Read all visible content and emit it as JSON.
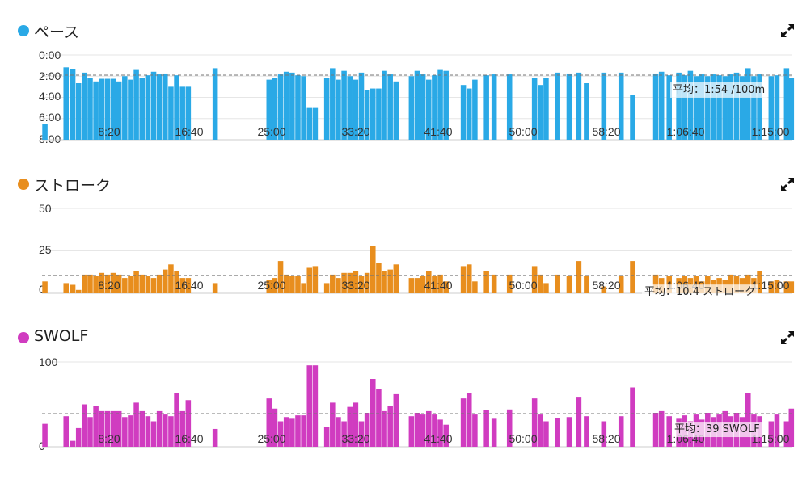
{
  "chart_data": [
    {
      "type": "bar",
      "title": "ペース",
      "color": "#2aa9e6",
      "y_ticks": [
        "0:00",
        "2:00",
        "4:00",
        "6:00",
        "8:00"
      ],
      "y_reversed": true,
      "ylim_seconds": [
        0,
        480
      ],
      "x_ticks": [
        "8:20",
        "16:40",
        "25:00",
        "33:20",
        "41:40",
        "50:00",
        "58:20",
        "1:06:40",
        "1:15:00"
      ],
      "xlim": [
        0,
        78
      ],
      "average_label": "平均：1:54 /100m",
      "average_value": 114,
      "grid": true,
      "values": [
        {
          "x": 0.3,
          "y": 390
        },
        {
          "x": 2.5,
          "y": 70
        },
        {
          "x": 3.2,
          "y": 80
        },
        {
          "x": 3.8,
          "y": 160
        },
        {
          "x": 4.4,
          "y": 100
        },
        {
          "x": 5.0,
          "y": 130
        },
        {
          "x": 5.6,
          "y": 150
        },
        {
          "x": 6.2,
          "y": 135
        },
        {
          "x": 6.8,
          "y": 135
        },
        {
          "x": 7.4,
          "y": 135
        },
        {
          "x": 8.0,
          "y": 150
        },
        {
          "x": 8.6,
          "y": 120
        },
        {
          "x": 9.2,
          "y": 140
        },
        {
          "x": 9.8,
          "y": 85
        },
        {
          "x": 10.4,
          "y": 130
        },
        {
          "x": 11.0,
          "y": 115
        },
        {
          "x": 11.6,
          "y": 95
        },
        {
          "x": 12.2,
          "y": 110
        },
        {
          "x": 12.8,
          "y": 105
        },
        {
          "x": 13.4,
          "y": 180
        },
        {
          "x": 14.0,
          "y": 115
        },
        {
          "x": 14.6,
          "y": 180
        },
        {
          "x": 15.2,
          "y": 180
        },
        {
          "x": 18.0,
          "y": 75
        },
        {
          "x": 23.6,
          "y": 140
        },
        {
          "x": 24.2,
          "y": 130
        },
        {
          "x": 24.8,
          "y": 110
        },
        {
          "x": 25.4,
          "y": 95
        },
        {
          "x": 26.0,
          "y": 100
        },
        {
          "x": 26.6,
          "y": 115
        },
        {
          "x": 27.2,
          "y": 120
        },
        {
          "x": 27.8,
          "y": 300
        },
        {
          "x": 28.4,
          "y": 300
        },
        {
          "x": 29.6,
          "y": 130
        },
        {
          "x": 30.2,
          "y": 75
        },
        {
          "x": 30.8,
          "y": 140
        },
        {
          "x": 31.4,
          "y": 90
        },
        {
          "x": 32.0,
          "y": 120
        },
        {
          "x": 32.6,
          "y": 140
        },
        {
          "x": 33.2,
          "y": 100
        },
        {
          "x": 33.8,
          "y": 200
        },
        {
          "x": 34.4,
          "y": 190
        },
        {
          "x": 35.0,
          "y": 190
        },
        {
          "x": 35.6,
          "y": 90
        },
        {
          "x": 36.2,
          "y": 110
        },
        {
          "x": 36.8,
          "y": 150
        },
        {
          "x": 38.4,
          "y": 120
        },
        {
          "x": 39.0,
          "y": 90
        },
        {
          "x": 39.6,
          "y": 110
        },
        {
          "x": 40.2,
          "y": 140
        },
        {
          "x": 40.8,
          "y": 115
        },
        {
          "x": 41.4,
          "y": 85
        },
        {
          "x": 42.0,
          "y": 90
        },
        {
          "x": 43.8,
          "y": 170
        },
        {
          "x": 44.4,
          "y": 190
        },
        {
          "x": 45.0,
          "y": 140
        },
        {
          "x": 46.2,
          "y": 115
        },
        {
          "x": 47.0,
          "y": 110
        },
        {
          "x": 48.6,
          "y": 110
        },
        {
          "x": 51.2,
          "y": 130
        },
        {
          "x": 51.8,
          "y": 170
        },
        {
          "x": 52.4,
          "y": 130
        },
        {
          "x": 53.6,
          "y": 100
        },
        {
          "x": 54.8,
          "y": 105
        },
        {
          "x": 55.8,
          "y": 100
        },
        {
          "x": 56.6,
          "y": 160
        },
        {
          "x": 58.4,
          "y": 100
        },
        {
          "x": 60.2,
          "y": 100
        },
        {
          "x": 61.4,
          "y": 225
        },
        {
          "x": 63.8,
          "y": 105
        },
        {
          "x": 64.4,
          "y": 95
        },
        {
          "x": 65.2,
          "y": 115
        },
        {
          "x": 66.2,
          "y": 100
        },
        {
          "x": 66.8,
          "y": 115
        },
        {
          "x": 67.4,
          "y": 90
        },
        {
          "x": 68.0,
          "y": 120
        },
        {
          "x": 68.6,
          "y": 110
        },
        {
          "x": 69.2,
          "y": 120
        },
        {
          "x": 69.8,
          "y": 110
        },
        {
          "x": 70.4,
          "y": 115
        },
        {
          "x": 71.0,
          "y": 120
        },
        {
          "x": 71.6,
          "y": 110
        },
        {
          "x": 72.2,
          "y": 100
        },
        {
          "x": 72.8,
          "y": 120
        },
        {
          "x": 73.4,
          "y": 75
        },
        {
          "x": 74.0,
          "y": 120
        },
        {
          "x": 74.6,
          "y": 110
        },
        {
          "x": 75.8,
          "y": 120
        },
        {
          "x": 76.4,
          "y": 115
        },
        {
          "x": 77.4,
          "y": 75
        },
        {
          "x": 77.9,
          "y": 130
        }
      ]
    },
    {
      "type": "bar",
      "title": "ストローク",
      "color": "#e88e1e",
      "y_ticks": [
        "0",
        "25",
        "50"
      ],
      "ylim": [
        0,
        50
      ],
      "x_ticks": [
        "8:20",
        "16:40",
        "25:00",
        "33:20",
        "41:40",
        "50:00",
        "58:20",
        "1:06:40",
        "1:15:00"
      ],
      "xlim": [
        0,
        78
      ],
      "average_label": "平均：10.4 ストローク",
      "average_value": 10.4,
      "grid": true,
      "values": [
        {
          "x": 0.3,
          "y": 7
        },
        {
          "x": 2.5,
          "y": 6
        },
        {
          "x": 3.2,
          "y": 5
        },
        {
          "x": 3.8,
          "y": 2
        },
        {
          "x": 4.4,
          "y": 11
        },
        {
          "x": 5.0,
          "y": 11
        },
        {
          "x": 5.6,
          "y": 10
        },
        {
          "x": 6.2,
          "y": 12
        },
        {
          "x": 6.8,
          "y": 11
        },
        {
          "x": 7.4,
          "y": 12
        },
        {
          "x": 8.0,
          "y": 11
        },
        {
          "x": 8.6,
          "y": 9
        },
        {
          "x": 9.2,
          "y": 10
        },
        {
          "x": 9.8,
          "y": 13
        },
        {
          "x": 10.4,
          "y": 11
        },
        {
          "x": 11.0,
          "y": 10
        },
        {
          "x": 11.6,
          "y": 9
        },
        {
          "x": 12.2,
          "y": 11
        },
        {
          "x": 12.8,
          "y": 14
        },
        {
          "x": 13.4,
          "y": 17
        },
        {
          "x": 14.0,
          "y": 13
        },
        {
          "x": 14.6,
          "y": 9
        },
        {
          "x": 15.2,
          "y": 9
        },
        {
          "x": 18.0,
          "y": 6
        },
        {
          "x": 23.6,
          "y": 8
        },
        {
          "x": 24.2,
          "y": 9
        },
        {
          "x": 24.8,
          "y": 19
        },
        {
          "x": 25.4,
          "y": 11
        },
        {
          "x": 26.0,
          "y": 10
        },
        {
          "x": 26.6,
          "y": 10
        },
        {
          "x": 27.2,
          "y": 6
        },
        {
          "x": 27.8,
          "y": 15
        },
        {
          "x": 28.4,
          "y": 16
        },
        {
          "x": 29.6,
          "y": 6
        },
        {
          "x": 30.2,
          "y": 11
        },
        {
          "x": 30.8,
          "y": 9
        },
        {
          "x": 31.4,
          "y": 12
        },
        {
          "x": 32.0,
          "y": 12
        },
        {
          "x": 32.6,
          "y": 13
        },
        {
          "x": 33.2,
          "y": 10
        },
        {
          "x": 33.8,
          "y": 12
        },
        {
          "x": 34.4,
          "y": 28
        },
        {
          "x": 35.0,
          "y": 18
        },
        {
          "x": 35.6,
          "y": 13
        },
        {
          "x": 36.2,
          "y": 14
        },
        {
          "x": 36.8,
          "y": 17
        },
        {
          "x": 38.4,
          "y": 9
        },
        {
          "x": 39.0,
          "y": 9
        },
        {
          "x": 39.6,
          "y": 10
        },
        {
          "x": 40.2,
          "y": 13
        },
        {
          "x": 40.8,
          "y": 10
        },
        {
          "x": 41.4,
          "y": 11
        },
        {
          "x": 42.0,
          "y": 7
        },
        {
          "x": 43.8,
          "y": 16
        },
        {
          "x": 44.4,
          "y": 17
        },
        {
          "x": 45.0,
          "y": 7
        },
        {
          "x": 46.2,
          "y": 13
        },
        {
          "x": 47.0,
          "y": 11
        },
        {
          "x": 48.6,
          "y": 11
        },
        {
          "x": 51.2,
          "y": 16
        },
        {
          "x": 51.8,
          "y": 11
        },
        {
          "x": 52.4,
          "y": 6
        },
        {
          "x": 53.6,
          "y": 11
        },
        {
          "x": 54.8,
          "y": 10
        },
        {
          "x": 55.8,
          "y": 19
        },
        {
          "x": 56.6,
          "y": 10
        },
        {
          "x": 58.4,
          "y": 4
        },
        {
          "x": 60.2,
          "y": 10
        },
        {
          "x": 61.4,
          "y": 19
        },
        {
          "x": 63.8,
          "y": 11
        },
        {
          "x": 64.4,
          "y": 9
        },
        {
          "x": 65.2,
          "y": 10
        },
        {
          "x": 66.2,
          "y": 9
        },
        {
          "x": 66.8,
          "y": 10
        },
        {
          "x": 67.4,
          "y": 9
        },
        {
          "x": 68.0,
          "y": 10
        },
        {
          "x": 68.6,
          "y": 7
        },
        {
          "x": 69.2,
          "y": 10
        },
        {
          "x": 69.8,
          "y": 8
        },
        {
          "x": 70.4,
          "y": 9
        },
        {
          "x": 71.0,
          "y": 8
        },
        {
          "x": 71.6,
          "y": 11
        },
        {
          "x": 72.2,
          "y": 10
        },
        {
          "x": 72.8,
          "y": 9
        },
        {
          "x": 73.4,
          "y": 11
        },
        {
          "x": 74.0,
          "y": 9
        },
        {
          "x": 74.6,
          "y": 13
        },
        {
          "x": 75.8,
          "y": 7
        },
        {
          "x": 76.4,
          "y": 8
        },
        {
          "x": 77.4,
          "y": 7
        },
        {
          "x": 77.9,
          "y": 7
        }
      ]
    },
    {
      "type": "bar",
      "title": "SWOLF",
      "color": "#d03cc0",
      "y_ticks": [
        "0",
        "100"
      ],
      "ylim": [
        0,
        100
      ],
      "x_ticks": [
        "8:20",
        "16:40",
        "25:00",
        "33:20",
        "41:40",
        "50:00",
        "58:20",
        "1:06:40",
        "1:15:00"
      ],
      "xlim": [
        0,
        78
      ],
      "average_label": "平均：39 SWOLF",
      "average_value": 39,
      "grid": true,
      "values": [
        {
          "x": 0.3,
          "y": 27
        },
        {
          "x": 2.5,
          "y": 36
        },
        {
          "x": 3.2,
          "y": 7
        },
        {
          "x": 3.8,
          "y": 22
        },
        {
          "x": 4.4,
          "y": 50
        },
        {
          "x": 5.0,
          "y": 35
        },
        {
          "x": 5.6,
          "y": 48
        },
        {
          "x": 6.2,
          "y": 42
        },
        {
          "x": 6.8,
          "y": 42
        },
        {
          "x": 7.4,
          "y": 42
        },
        {
          "x": 8.0,
          "y": 42
        },
        {
          "x": 8.6,
          "y": 35
        },
        {
          "x": 9.2,
          "y": 37
        },
        {
          "x": 9.8,
          "y": 52
        },
        {
          "x": 10.4,
          "y": 42
        },
        {
          "x": 11.0,
          "y": 36
        },
        {
          "x": 11.6,
          "y": 30
        },
        {
          "x": 12.2,
          "y": 42
        },
        {
          "x": 12.8,
          "y": 38
        },
        {
          "x": 13.4,
          "y": 36
        },
        {
          "x": 14.0,
          "y": 63
        },
        {
          "x": 14.6,
          "y": 42
        },
        {
          "x": 15.2,
          "y": 55
        },
        {
          "x": 18.0,
          "y": 21
        },
        {
          "x": 23.6,
          "y": 57
        },
        {
          "x": 24.2,
          "y": 45
        },
        {
          "x": 24.8,
          "y": 30
        },
        {
          "x": 25.4,
          "y": 35
        },
        {
          "x": 26.0,
          "y": 33
        },
        {
          "x": 26.6,
          "y": 37
        },
        {
          "x": 27.2,
          "y": 37
        },
        {
          "x": 27.8,
          "y": 96
        },
        {
          "x": 28.4,
          "y": 96
        },
        {
          "x": 29.6,
          "y": 23
        },
        {
          "x": 30.2,
          "y": 52
        },
        {
          "x": 30.8,
          "y": 35
        },
        {
          "x": 31.4,
          "y": 30
        },
        {
          "x": 32.0,
          "y": 47
        },
        {
          "x": 32.6,
          "y": 52
        },
        {
          "x": 33.2,
          "y": 30
        },
        {
          "x": 33.8,
          "y": 40
        },
        {
          "x": 34.4,
          "y": 80
        },
        {
          "x": 35.0,
          "y": 68
        },
        {
          "x": 35.6,
          "y": 42
        },
        {
          "x": 36.2,
          "y": 48
        },
        {
          "x": 36.8,
          "y": 62
        },
        {
          "x": 38.4,
          "y": 36
        },
        {
          "x": 39.0,
          "y": 40
        },
        {
          "x": 39.6,
          "y": 38
        },
        {
          "x": 40.2,
          "y": 42
        },
        {
          "x": 40.8,
          "y": 38
        },
        {
          "x": 41.4,
          "y": 32
        },
        {
          "x": 42.0,
          "y": 26
        },
        {
          "x": 43.8,
          "y": 57
        },
        {
          "x": 44.4,
          "y": 63
        },
        {
          "x": 45.0,
          "y": 38
        },
        {
          "x": 46.2,
          "y": 43
        },
        {
          "x": 47.0,
          "y": 33
        },
        {
          "x": 48.6,
          "y": 44
        },
        {
          "x": 51.2,
          "y": 57
        },
        {
          "x": 51.8,
          "y": 38
        },
        {
          "x": 52.4,
          "y": 30
        },
        {
          "x": 53.6,
          "y": 34
        },
        {
          "x": 54.8,
          "y": 35
        },
        {
          "x": 55.8,
          "y": 58
        },
        {
          "x": 56.6,
          "y": 36
        },
        {
          "x": 58.4,
          "y": 30
        },
        {
          "x": 60.2,
          "y": 36
        },
        {
          "x": 61.4,
          "y": 70
        },
        {
          "x": 63.8,
          "y": 40
        },
        {
          "x": 64.4,
          "y": 42
        },
        {
          "x": 65.2,
          "y": 36
        },
        {
          "x": 66.2,
          "y": 33
        },
        {
          "x": 66.8,
          "y": 37
        },
        {
          "x": 67.4,
          "y": 30
        },
        {
          "x": 68.0,
          "y": 38
        },
        {
          "x": 68.6,
          "y": 32
        },
        {
          "x": 69.2,
          "y": 40
        },
        {
          "x": 69.8,
          "y": 35
        },
        {
          "x": 70.4,
          "y": 38
        },
        {
          "x": 71.0,
          "y": 42
        },
        {
          "x": 71.6,
          "y": 36
        },
        {
          "x": 72.2,
          "y": 40
        },
        {
          "x": 72.8,
          "y": 35
        },
        {
          "x": 73.4,
          "y": 63
        },
        {
          "x": 74.0,
          "y": 38
        },
        {
          "x": 74.6,
          "y": 36
        },
        {
          "x": 75.8,
          "y": 30
        },
        {
          "x": 76.4,
          "y": 38
        },
        {
          "x": 77.4,
          "y": 30
        },
        {
          "x": 77.9,
          "y": 45
        }
      ]
    }
  ]
}
